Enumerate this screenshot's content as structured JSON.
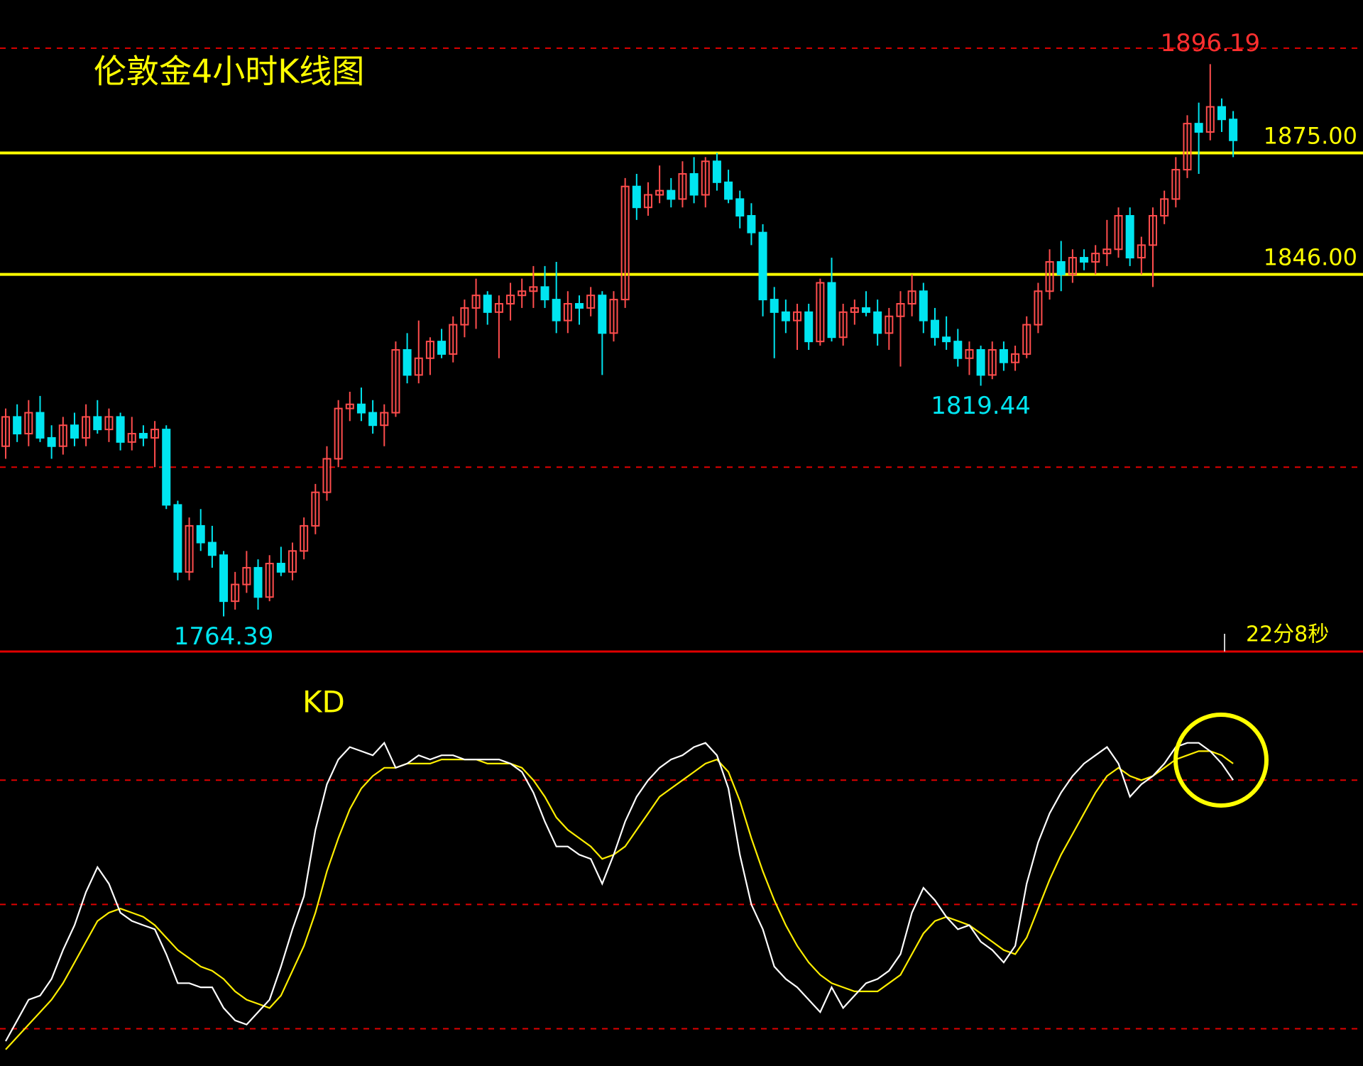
{
  "chart_data": [
    {
      "type": "candlestick",
      "title": "伦敦金4小时K线图",
      "open": [
        1805,
        1812,
        1808,
        1813,
        1807,
        1805,
        1810,
        1807,
        1812,
        1809,
        1812,
        1806,
        1808,
        1807,
        1809,
        1791,
        1775,
        1786,
        1782,
        1779,
        1768,
        1772,
        1776,
        1769,
        1777,
        1775,
        1780,
        1786,
        1794,
        1802,
        1814,
        1815,
        1813,
        1810,
        1813,
        1828,
        1822,
        1826,
        1830,
        1827,
        1834,
        1838,
        1841,
        1837,
        1839,
        1841,
        1842,
        1843,
        1840,
        1835,
        1839,
        1838,
        1841,
        1832,
        1840,
        1867,
        1862,
        1865,
        1866,
        1864,
        1870,
        1865,
        1873,
        1868,
        1864,
        1860,
        1856,
        1840,
        1837,
        1835,
        1837,
        1830,
        1844,
        1831,
        1837,
        1838,
        1837,
        1832,
        1836,
        1839,
        1842,
        1835,
        1831,
        1830,
        1826,
        1828,
        1822,
        1828,
        1825,
        1827,
        1834,
        1842,
        1849,
        1846,
        1850,
        1849,
        1851,
        1852,
        1860,
        1850,
        1853,
        1860,
        1864,
        1871,
        1882,
        1880,
        1886,
        1883
      ],
      "high": [
        1814,
        1815,
        1816,
        1817,
        1810,
        1812,
        1813,
        1815,
        1816,
        1814,
        1813,
        1812,
        1810,
        1811,
        1810,
        1792,
        1788,
        1790,
        1786,
        1780,
        1775,
        1780,
        1778,
        1779,
        1781,
        1782,
        1788,
        1796,
        1805,
        1816,
        1818,
        1819,
        1816,
        1815,
        1830,
        1832,
        1835,
        1831,
        1833,
        1836,
        1840,
        1845,
        1842,
        1841,
        1844,
        1845,
        1848,
        1848,
        1849,
        1842,
        1841,
        1843,
        1842,
        1842,
        1869,
        1870,
        1868,
        1872,
        1869,
        1873,
        1874,
        1874,
        1875,
        1871,
        1866,
        1863,
        1858,
        1843,
        1840,
        1839,
        1839,
        1845,
        1850,
        1839,
        1840,
        1842,
        1840,
        1838,
        1842,
        1846,
        1844,
        1838,
        1836,
        1833,
        1830,
        1829,
        1830,
        1830,
        1829,
        1836,
        1844,
        1852,
        1854,
        1852,
        1852,
        1853,
        1859,
        1862,
        1862,
        1855,
        1862,
        1866,
        1874,
        1884,
        1887,
        1896.19,
        1888,
        1885
      ],
      "low": [
        1802,
        1806,
        1805,
        1806,
        1802,
        1803,
        1805,
        1805,
        1808,
        1806,
        1804,
        1804,
        1805,
        1800,
        1790,
        1773,
        1773,
        1780,
        1776,
        1764.39,
        1766,
        1770,
        1766,
        1768,
        1774,
        1773,
        1778,
        1784,
        1792,
        1800,
        1811,
        1811,
        1808,
        1805,
        1812,
        1820,
        1820,
        1822,
        1826,
        1825,
        1831,
        1833,
        1834,
        1826,
        1835,
        1838,
        1838,
        1838,
        1832,
        1832,
        1834,
        1836,
        1822,
        1830,
        1838,
        1859,
        1860,
        1863,
        1862,
        1862,
        1863,
        1862,
        1866,
        1863,
        1857,
        1853,
        1836,
        1826,
        1832,
        1828,
        1828,
        1829,
        1830,
        1829,
        1834,
        1836,
        1829,
        1828,
        1824,
        1836,
        1832,
        1829,
        1828,
        1824,
        1822,
        1819.44,
        1821,
        1823,
        1823,
        1826,
        1832,
        1840,
        1842,
        1844,
        1847,
        1846,
        1848,
        1850,
        1848,
        1846,
        1843,
        1858,
        1862,
        1869,
        1870,
        1878,
        1880,
        1874
      ],
      "close": [
        1812,
        1808,
        1813,
        1807,
        1805,
        1810,
        1807,
        1812,
        1809,
        1812,
        1806,
        1808,
        1807,
        1809,
        1791,
        1775,
        1786,
        1782,
        1779,
        1768,
        1772,
        1776,
        1769,
        1777,
        1775,
        1780,
        1786,
        1794,
        1802,
        1814,
        1815,
        1813,
        1810,
        1813,
        1828,
        1822,
        1826,
        1830,
        1827,
        1834,
        1838,
        1841,
        1837,
        1839,
        1841,
        1842,
        1843,
        1840,
        1835,
        1839,
        1838,
        1841,
        1832,
        1840,
        1867,
        1862,
        1865,
        1866,
        1864,
        1870,
        1865,
        1873,
        1868,
        1864,
        1860,
        1856,
        1840,
        1837,
        1835,
        1837,
        1830,
        1844,
        1831,
        1837,
        1838,
        1837,
        1832,
        1836,
        1839,
        1842,
        1835,
        1831,
        1830,
        1826,
        1828,
        1822,
        1828,
        1825,
        1827,
        1834,
        1842,
        1849,
        1846,
        1850,
        1849,
        1851,
        1852,
        1860,
        1850,
        1853,
        1860,
        1864,
        1871,
        1882,
        1880,
        1886,
        1883,
        1878
      ],
      "ylim": [
        1756,
        1911.5
      ],
      "gridlines": [
        1900,
        1800
      ],
      "levels": [
        {
          "value": 1875,
          "label": "1875.00"
        },
        {
          "value": 1846,
          "label": "1846.00"
        }
      ],
      "annotations": [
        1896.19,
        1819.44,
        1764.39
      ],
      "countdown": "22分8秒",
      "up_color": "#ff4d4d",
      "down_color": "#00e5f0",
      "grid_color": "#e00000",
      "level_color": "#ffff00",
      "high_label_color": "#ff3030"
    },
    {
      "type": "line",
      "title": "KD",
      "series": [
        {
          "color": "#ffffff",
          "values": [
            17,
            22,
            27,
            28,
            32,
            39,
            45,
            53,
            59,
            55,
            48,
            46,
            45,
            44,
            38,
            31,
            31,
            30,
            30,
            25,
            22,
            21,
            24,
            27,
            35,
            44,
            52,
            68,
            79,
            85,
            88,
            87,
            86,
            89,
            83,
            84,
            86,
            85,
            86,
            86,
            85,
            85,
            85,
            85,
            84,
            82,
            77,
            70,
            64,
            64,
            62,
            61,
            55,
            62,
            70,
            76,
            80,
            83,
            85,
            86,
            88,
            89,
            86,
            78,
            62,
            50,
            44,
            35,
            32,
            30,
            27,
            24,
            30,
            25,
            28,
            31,
            32,
            34,
            38,
            48,
            54,
            51,
            47,
            44,
            45,
            41,
            39,
            36,
            40,
            55,
            65,
            72,
            77,
            81,
            84,
            86,
            88,
            84,
            76,
            79,
            81,
            84,
            88,
            89,
            89,
            87,
            84,
            80
          ]
        },
        {
          "color": "#ffee00",
          "values": [
            15,
            18,
            21,
            24,
            27,
            31,
            36,
            41,
            46,
            48,
            49,
            48,
            47,
            45,
            42,
            39,
            37,
            35,
            34,
            32,
            29,
            27,
            26,
            25,
            28,
            34,
            40,
            48,
            58,
            66,
            73,
            78,
            81,
            83,
            83,
            84,
            84,
            84,
            85,
            85,
            85,
            85,
            84,
            84,
            84,
            83,
            80,
            76,
            71,
            68,
            66,
            64,
            61,
            62,
            64,
            68,
            72,
            76,
            78,
            80,
            82,
            84,
            85,
            82,
            75,
            66,
            58,
            51,
            45,
            40,
            36,
            33,
            31,
            30,
            29,
            29,
            29,
            31,
            33,
            38,
            43,
            46,
            47,
            46,
            45,
            43,
            41,
            39,
            38,
            42,
            49,
            56,
            62,
            67,
            72,
            77,
            81,
            83,
            81,
            80,
            81,
            83,
            85,
            86,
            87,
            87,
            86,
            84
          ]
        }
      ],
      "ylim": [
        11,
        109
      ],
      "gridlines": [
        80,
        50,
        20
      ],
      "grid_color": "#e00000"
    }
  ]
}
